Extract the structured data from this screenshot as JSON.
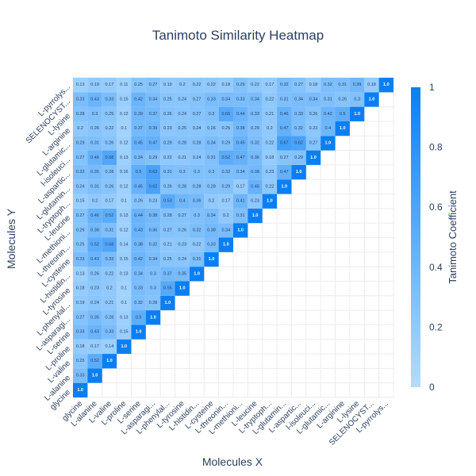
{
  "chart_data": {
    "type": "heatmap",
    "title": "Tanimoto Similarity Heatmap",
    "xlabel": "Molecules X",
    "ylabel": "Molecules Y",
    "colorbar_title": "Tanimoto Coefficient",
    "colorbar_ticks": [
      "0",
      "0.2",
      "0.4",
      "0.6",
      "0.8",
      "1"
    ],
    "zlim": [
      0,
      1
    ],
    "colorscale": [
      "#b3dcff",
      "#0a7ff5"
    ],
    "molecules": [
      "glycine",
      "L-alanine",
      "L-valine",
      "L-proline",
      "L-serine",
      "L-asparagi...",
      "L-phenylal...",
      "L-tyrosine",
      "L-histidin...",
      "L-cysteine",
      "L-threonin...",
      "L-methioni...",
      "L-leucine",
      "L-tryptoph...",
      "L-glutamin...",
      "L-aspartic...",
      "L-isoleuci...",
      "L-glutamic...",
      "L-arginine",
      "L-lysine",
      "SELENOCYST...",
      "L-pyrrolys..."
    ],
    "x_labels": [
      "glycine",
      "L-alanine",
      "L-valine",
      "L-proline",
      "L-serine",
      "L-asparagi...",
      "L-phenylal...",
      "L-tyrosine",
      "L-histidin...",
      "L-cysteine",
      "L-threonin...",
      "L-methioni...",
      "L-leucine",
      "L-tryptoph...",
      "L-glutamin...",
      "L-aspartic...",
      "l-isoleuci...",
      "L-glutamic...",
      "L-arginine",
      "L-lysine",
      "SELENOCYST...",
      "L-pyrrolys..."
    ],
    "y_labels": [
      "glycine",
      "L-alanine",
      "L-valine",
      "L-proline",
      "L-serine",
      "L-asparagi...",
      "L-phenylal...",
      "L-tyrosine",
      "L-histidin...",
      "L-cysteine",
      "L-threonin...",
      "L-methioni...",
      "L-leucine",
      "L-tryptoph...",
      "L-glutamin...",
      "L-aspartic...",
      "l-isoleuci...",
      "L-glutamic...",
      "L-arginine",
      "L-lysine",
      "SELENOCYST...",
      "L-pyrrolys..."
    ],
    "y_tick_labels_shown": [
      "glycine",
      "L-alanine",
      "L-valine",
      "L-proline",
      "L-serine",
      "L-asparagi...",
      "L-phenylal...",
      "L-tyrosine",
      "L-histidin...",
      "L-cysteine",
      "L-threonin...",
      "L-methioni...",
      "L-leucine",
      "L-tryptoph...",
      "L-glutamin...",
      "L-aspartic...",
      "l-isoleuci...",
      "L-glutamic...",
      "L-arginine",
      "L-lysine",
      "SELENOCYST...",
      "L-pyrrolys..."
    ],
    "rows": [
      [
        1.0
      ],
      [
        0.33,
        1.0
      ],
      [
        0.25,
        0.52,
        1.0
      ],
      [
        0.18,
        0.17,
        0.14,
        1.0
      ],
      [
        0.33,
        0.43,
        0.33,
        0.15,
        1.0
      ],
      [
        0.27,
        0.35,
        0.28,
        0.13,
        0.5,
        1.0
      ],
      [
        0.19,
        0.24,
        0.21,
        0.1,
        0.32,
        0.28,
        1.0
      ],
      [
        0.18,
        0.23,
        0.2,
        0.1,
        0.33,
        0.3,
        0.55,
        1.0
      ],
      [
        0.13,
        0.26,
        0.22,
        0.13,
        0.34,
        0.3,
        0.37,
        0.35,
        1.0
      ],
      [
        0.33,
        0.43,
        0.33,
        0.15,
        0.42,
        0.34,
        0.25,
        0.24,
        0.31,
        1.0
      ],
      [
        0.25,
        0.52,
        0.58,
        0.14,
        0.38,
        0.32,
        0.21,
        0.23,
        0.22,
        0.33,
        1.0
      ],
      [
        0.26,
        0.38,
        0.31,
        0.12,
        0.43,
        0.36,
        0.27,
        0.26,
        0.32,
        0.38,
        0.34,
        1.0
      ],
      [
        0.27,
        0.46,
        0.52,
        0.13,
        0.44,
        0.38,
        0.28,
        0.27,
        0.3,
        0.34,
        0.2,
        0.31,
        1.0
      ],
      [
        0.15,
        0.2,
        0.17,
        0.1,
        0.26,
        0.23,
        0.53,
        0.4,
        0.36,
        0.2,
        0.17,
        0.41,
        0.23,
        1.0
      ],
      [
        0.24,
        0.31,
        0.26,
        0.12,
        0.45,
        0.62,
        0.26,
        0.28,
        0.28,
        0.28,
        0.29,
        0.17,
        0.45,
        0.22,
        1.0
      ],
      [
        0.32,
        0.35,
        0.28,
        0.16,
        0.5,
        0.63,
        0.31,
        0.3,
        0.3,
        0.3,
        0.32,
        0.34,
        0.38,
        0.23,
        0.47,
        1.0
      ],
      [
        0.27,
        0.46,
        0.58,
        0.13,
        0.34,
        0.29,
        0.22,
        0.21,
        0.24,
        0.31,
        0.52,
        0.47,
        0.36,
        0.18,
        0.27,
        0.29,
        1.0
      ],
      [
        0.29,
        0.31,
        0.26,
        0.12,
        0.45,
        0.47,
        0.29,
        0.28,
        0.28,
        0.34,
        0.29,
        0.45,
        0.32,
        0.22,
        0.67,
        0.62,
        0.27,
        1.0
      ],
      [
        0.2,
        0.26,
        0.22,
        0.1,
        0.37,
        0.39,
        0.23,
        0.25,
        0.24,
        0.26,
        0.25,
        0.38,
        0.29,
        0.2,
        0.47,
        0.32,
        0.23,
        0.4,
        1.0
      ],
      [
        0.28,
        0.3,
        0.25,
        0.12,
        0.39,
        0.37,
        0.26,
        0.24,
        0.27,
        0.3,
        0.55,
        0.44,
        0.33,
        0.21,
        0.46,
        0.33,
        0.26,
        0.42,
        0.5,
        1.0
      ],
      [
        0.33,
        0.43,
        0.33,
        0.15,
        0.42,
        0.34,
        0.25,
        0.24,
        0.27,
        0.33,
        0.34,
        0.33,
        0.34,
        0.22,
        0.31,
        0.34,
        0.34,
        0.31,
        0.26,
        0.3,
        1.0
      ],
      [
        0.13,
        0.19,
        0.17,
        0.11,
        0.25,
        0.27,
        0.19,
        0.2,
        0.22,
        0.22,
        0.18,
        0.29,
        0.22,
        0.17,
        0.32,
        0.27,
        0.18,
        0.32,
        0.31,
        0.39,
        0.18,
        1.0
      ]
    ]
  }
}
